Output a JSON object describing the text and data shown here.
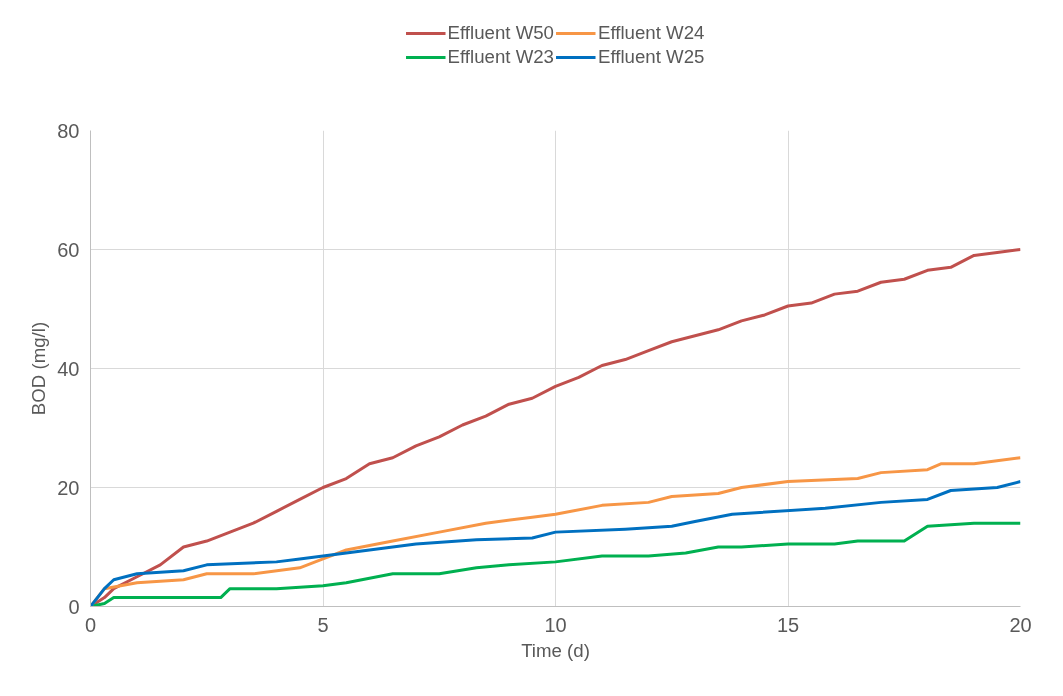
{
  "chart_data": {
    "type": "line",
    "xlabel": "Time (d)",
    "ylabel": "BOD (mg/l)",
    "xlim": [
      0,
      20
    ],
    "ylim": [
      0,
      80
    ],
    "xticks": [
      0,
      5,
      10,
      15,
      20
    ],
    "yticks": [
      0,
      20,
      40,
      60,
      80
    ],
    "grid": true,
    "legend": "top",
    "marker": "none",
    "line_style": "solid",
    "series": [
      {
        "name": "Effluent W50",
        "color": "#c0504d",
        "x": [
          0,
          0.3,
          0.5,
          1,
          1.5,
          2,
          2.5,
          3,
          3.5,
          4,
          4.5,
          5,
          5.5,
          6,
          6.5,
          7,
          7.5,
          8,
          8.5,
          9,
          9.5,
          10,
          10.5,
          11,
          11.5,
          12,
          12.5,
          13,
          13.5,
          14,
          14.5,
          15,
          15.5,
          16,
          16.5,
          17,
          17.5,
          18,
          18.5,
          19,
          19.5,
          20
        ],
        "values": [
          0,
          1.5,
          3,
          5,
          7,
          10,
          11,
          12.5,
          14,
          16,
          18,
          20,
          21.5,
          24,
          25,
          27,
          28.5,
          30.5,
          32,
          34,
          35,
          37,
          38.5,
          40.5,
          41.5,
          43,
          44.5,
          45.5,
          46.5,
          48,
          49,
          50.5,
          51,
          52.5,
          53,
          54.5,
          55,
          56.5,
          57,
          59,
          59.5,
          60
        ]
      },
      {
        "name": "Effluent W23",
        "color": "#00b050",
        "x": [
          0,
          0.3,
          0.5,
          1,
          2,
          2.8,
          3,
          4,
          5,
          5.5,
          6.5,
          7.5,
          8.3,
          9,
          10,
          11,
          12,
          12.8,
          13.5,
          14,
          15,
          16,
          16.5,
          17.5,
          18,
          19,
          20
        ],
        "values": [
          0,
          0.5,
          1.5,
          1.5,
          1.5,
          1.5,
          3,
          3,
          3.5,
          4,
          5.5,
          5.5,
          6.5,
          7,
          7.5,
          8.5,
          8.5,
          9,
          10,
          10,
          10.5,
          10.5,
          11,
          11,
          13.5,
          14,
          14
        ]
      },
      {
        "name": "Effluent W24",
        "color": "#f79646",
        "x": [
          0,
          0.3,
          1,
          2,
          2.5,
          3.5,
          4.5,
          5,
          5.5,
          6.5,
          7.5,
          8.5,
          9.5,
          10,
          11,
          12,
          12.5,
          13.5,
          14,
          15,
          16.5,
          17,
          18,
          18.3,
          19,
          20
        ],
        "values": [
          0,
          3,
          4,
          4.5,
          5.5,
          5.5,
          6.5,
          8,
          9.5,
          11,
          12.5,
          14,
          15,
          15.5,
          17,
          17.5,
          18.5,
          19,
          20,
          21,
          21.5,
          22.5,
          23,
          24,
          24,
          25
        ]
      },
      {
        "name": "Effluent W25",
        "color": "#0070c0",
        "x": [
          0,
          0.3,
          0.5,
          1,
          2,
          2.5,
          4,
          4.5,
          6,
          7,
          8.3,
          9.5,
          10,
          11.5,
          12.5,
          13,
          13.8,
          15.8,
          17,
          18,
          18.5,
          19.5,
          20
        ],
        "values": [
          0,
          3,
          4.5,
          5.5,
          6,
          7,
          7.5,
          8,
          9.5,
          10.5,
          11.2,
          11.5,
          12.5,
          13,
          13.5,
          14.3,
          15.5,
          16.5,
          17.5,
          18,
          19.5,
          20,
          21
        ]
      }
    ]
  }
}
